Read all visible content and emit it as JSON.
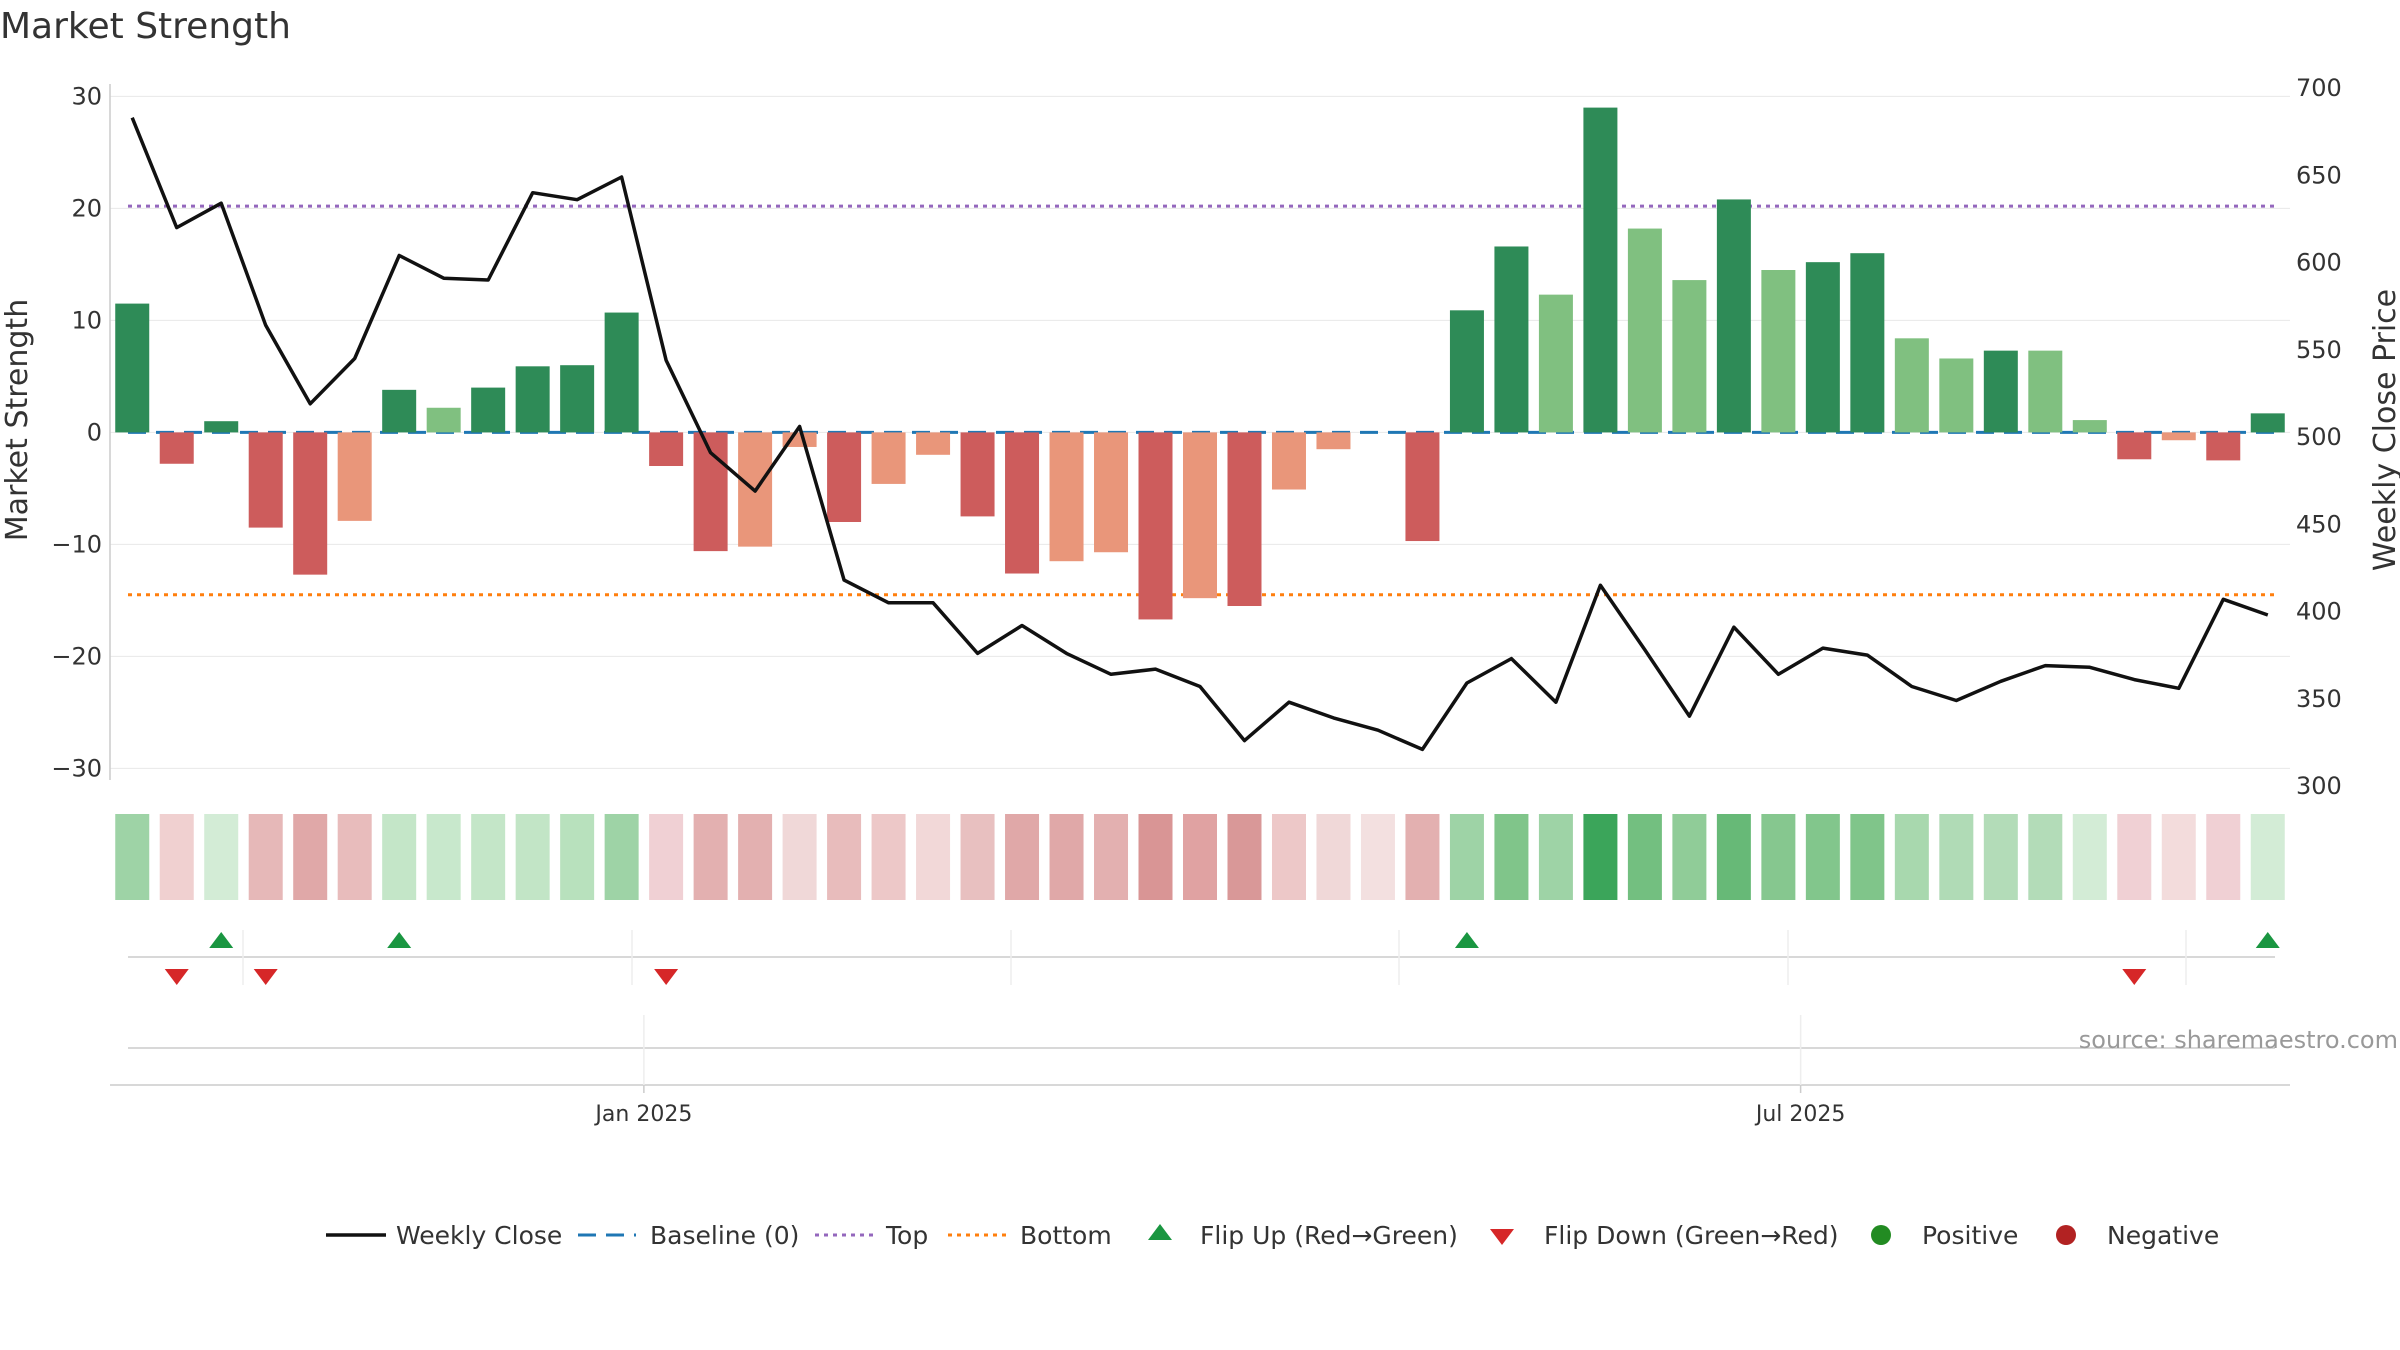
{
  "colors": {
    "strong_green": "#2e8b57",
    "light_green": "#80c080",
    "strong_red": "#cd5c5c",
    "light_red": "#e9967a",
    "price_line": "#111111",
    "baseline": "#1f77b4",
    "top_line": "#9467bd",
    "bottom_line": "#ff7f0e",
    "flip_up": "#1a9641",
    "flip_down": "#d62728",
    "positive": "#228b22",
    "negative": "#b22222"
  },
  "chart_data": {
    "type": "bar+line",
    "title": "Market Strength",
    "ylabel_left": "Market Strength",
    "ylabel_right": "Weekly Close Price",
    "ylim_left": [
      -32,
      30
    ],
    "ylim_right": [
      300,
      700
    ],
    "yticks_left": [
      30,
      20,
      10,
      0,
      -10,
      -20,
      -30
    ],
    "ytick_labels_left": [
      "30",
      "20",
      "10",
      "0",
      "−10",
      "−20",
      "−30"
    ],
    "yticks_right": [
      700,
      650,
      600,
      550,
      500,
      450,
      400,
      350,
      300
    ],
    "x_tick_labels": [
      {
        "label": "Jan 2025",
        "week": 11.5
      },
      {
        "label": "Jul 2025",
        "week": 37.5
      }
    ],
    "top_level": 20.2,
    "bottom_level": -14.5,
    "baseline_value": 0,
    "strength": [
      11.5,
      -2.8,
      1.0,
      -8.5,
      -12.7,
      -7.9,
      3.8,
      2.2,
      4.0,
      5.9,
      6.0,
      10.7,
      -3.0,
      -10.6,
      -10.2,
      -1.3,
      -8.0,
      -4.6,
      -2.0,
      -7.5,
      -12.6,
      -11.5,
      -10.7,
      -16.7,
      -14.8,
      -15.5,
      -5.1,
      -1.5,
      0,
      -9.7,
      10.9,
      16.6,
      12.3,
      29.0,
      18.2,
      13.6,
      20.8,
      14.5,
      15.2,
      16.0,
      8.4,
      6.6,
      7.3,
      7.3,
      1.1,
      -2.4,
      -0.7,
      -2.5,
      1.7
    ],
    "strength_class": [
      "strong_green",
      "strong_red",
      "strong_green",
      "strong_red",
      "strong_red",
      "light_red",
      "strong_green",
      "light_green",
      "strong_green",
      "strong_green",
      "strong_green",
      "strong_green",
      "strong_red",
      "strong_red",
      "light_red",
      "light_red",
      "strong_red",
      "light_red",
      "light_red",
      "strong_red",
      "strong_red",
      "light_red",
      "light_red",
      "strong_red",
      "light_red",
      "strong_red",
      "light_red",
      "light_red",
      "none",
      "strong_red",
      "strong_green",
      "strong_green",
      "light_green",
      "strong_green",
      "light_green",
      "light_green",
      "strong_green",
      "light_green",
      "strong_green",
      "strong_green",
      "light_green",
      "light_green",
      "strong_green",
      "light_green",
      "light_green",
      "strong_red",
      "light_red",
      "strong_red",
      "strong_green"
    ],
    "weekly_close": [
      683,
      620,
      634,
      564,
      519,
      545,
      604,
      591,
      590,
      640,
      636,
      649,
      544,
      491,
      469,
      506,
      418,
      405,
      405,
      376,
      392,
      376,
      364,
      367,
      357,
      326,
      348,
      339,
      332,
      321,
      359,
      373,
      348,
      415,
      378,
      340,
      391,
      364,
      379,
      375,
      357,
      349,
      360,
      369,
      368,
      361,
      356,
      407,
      398
    ],
    "heat_colors": [
      "#9ed3a6",
      "#f0d0d0",
      "#d3ecd6",
      "#e6b8b8",
      "#e0a8a8",
      "#e8bcbc",
      "#c4e6c8",
      "#c8e8cc",
      "#c4e6c8",
      "#c2e5c6",
      "#b8e1bd",
      "#9ed3a6",
      "#f0d0d4",
      "#e3b0b0",
      "#e3b0b0",
      "#f0d8d8",
      "#e8bcbc",
      "#edc8c8",
      "#f2d8d8",
      "#e8c0c0",
      "#e0a8a8",
      "#e0a8a8",
      "#e3b0b0",
      "#d99595",
      "#e0a2a2",
      "#d99898",
      "#edc8c8",
      "#f0d8d8",
      "#f3e0e0",
      "#e3b0b0",
      "#9ed3a6",
      "#80c58a",
      "#9ed3a6",
      "#3ba55a",
      "#73bf80",
      "#90cc98",
      "#67b977",
      "#86c78f",
      "#82c68c",
      "#80c58a",
      "#a8d8ae",
      "#b0dbb6",
      "#b3dcb8",
      "#b3dcb8",
      "#d3ecd6",
      "#f0d0d4",
      "#f3dcdc",
      "#f0d0d4",
      "#d3ecd6"
    ],
    "flips_up_weeks": [
      2,
      6,
      30,
      48
    ],
    "flips_down_weeks": [
      1,
      3,
      12,
      45
    ],
    "legend": [
      "Weekly Close",
      "Baseline (0)",
      "Top",
      "Bottom",
      "Flip Up (Red→Green)",
      "Flip Down (Green→Red)",
      "Positive",
      "Negative"
    ],
    "source": "source: sharemaestro.com"
  }
}
